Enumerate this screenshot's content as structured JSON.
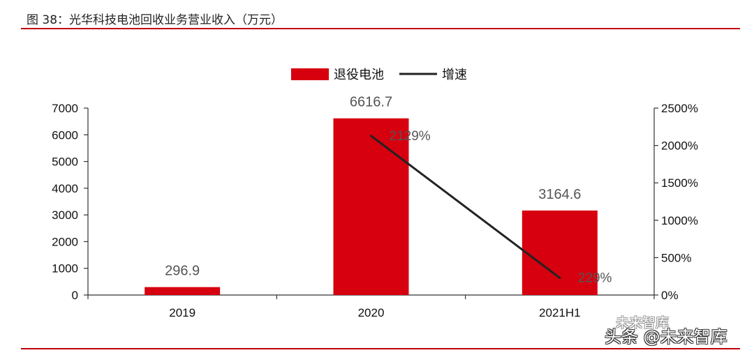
{
  "figure": {
    "title": "图 38：光华科技电池回收业务营业收入（万元）"
  },
  "colors": {
    "bar": "#d7000f",
    "line": "#222222",
    "rule": "#c0000a"
  },
  "chart_data": {
    "type": "bar",
    "categories": [
      "2019",
      "2020",
      "2021H1"
    ],
    "series": [
      {
        "name": "退役电池",
        "type": "bar",
        "axis": "left",
        "values": [
          296.9,
          6616.7,
          3164.6
        ],
        "labels": [
          "296.9",
          "6616.7",
          "3164.6"
        ]
      },
      {
        "name": "增速",
        "type": "line",
        "axis": "right",
        "points": [
          {
            "category": "2020",
            "value": 2129,
            "label": "2129%"
          },
          {
            "category": "2021H1",
            "value": 229,
            "label": "229%"
          }
        ]
      }
    ],
    "left_axis": {
      "range": [
        0,
        7000
      ],
      "ticks": [
        "0",
        "1000",
        "2000",
        "3000",
        "4000",
        "5000",
        "6000",
        "7000"
      ]
    },
    "right_axis": {
      "range": [
        0,
        2500
      ],
      "ticks": [
        "0%",
        "500%",
        "1000%",
        "1500%",
        "2000%",
        "2500%"
      ]
    },
    "legend": {
      "placement": "top-center",
      "items": [
        "退役电池",
        "增速"
      ]
    }
  },
  "watermark": {
    "logo_text": "未来智库",
    "text": "头条 @未来智库"
  }
}
